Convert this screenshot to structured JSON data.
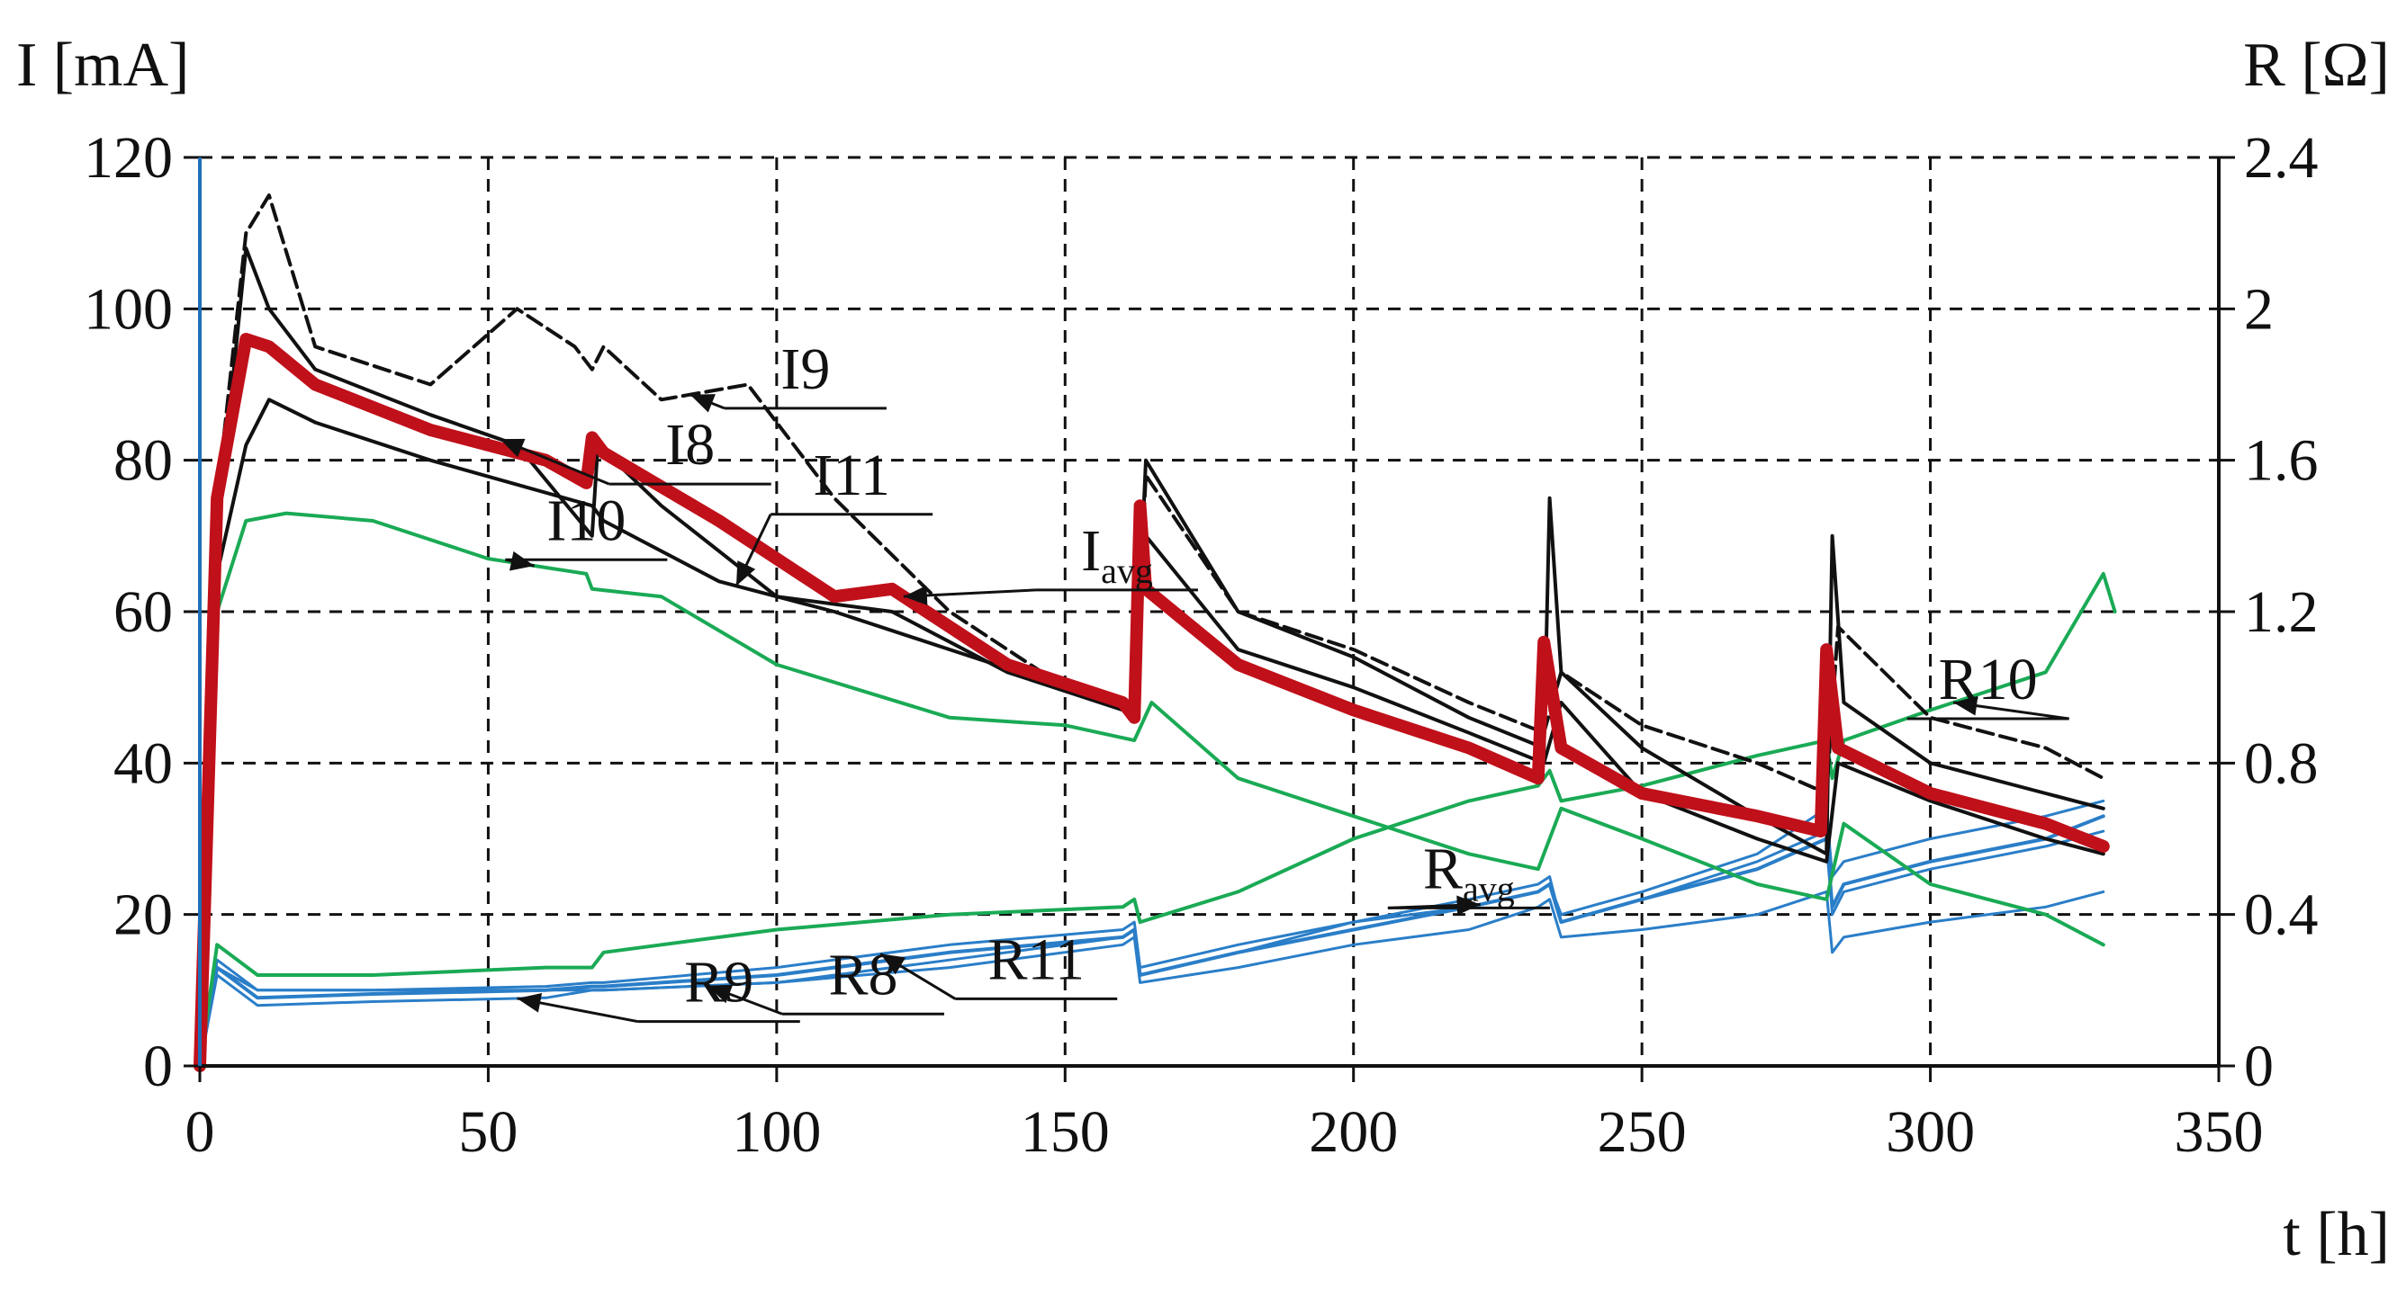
{
  "chart_data": {
    "type": "line",
    "x_axis": {
      "label": "t [h]",
      "min": 0,
      "max": 350,
      "ticks": [
        0,
        50,
        100,
        150,
        200,
        250,
        300,
        350
      ]
    },
    "y_left": {
      "label": "I [mA]",
      "min": 0,
      "max": 120,
      "ticks": [
        0,
        20,
        40,
        60,
        80,
        100,
        120
      ]
    },
    "y_right": {
      "label": "R [Ω]",
      "min": 0,
      "max": 2.4,
      "ticks": [
        "0",
        "0.4",
        "0.8",
        "1.2",
        "1.6",
        "2",
        "2.4"
      ]
    },
    "grid": "dashed",
    "colors": {
      "I8": "#111111",
      "I9": "#111111",
      "I11": "#111111",
      "I10": "#1aaa55",
      "Iavg": "#c0101a",
      "R8": "#2a7ec8",
      "R9": "#2a7ec8",
      "R11": "#2a7ec8",
      "R10": "#1aaa55",
      "Ravg": "#2a7ec8"
    },
    "series": [
      {
        "name": "I8",
        "axis": "left",
        "x": [
          0,
          3,
          8,
          12,
          20,
          40,
          55,
          68,
          69,
          80,
          100,
          120,
          140,
          160,
          162,
          164,
          180,
          200,
          220,
          233,
          234,
          236,
          250,
          270,
          282,
          283,
          285,
          300,
          320,
          330
        ],
        "y": [
          0,
          70,
          108,
          100,
          92,
          86,
          82,
          70,
          82,
          74,
          62,
          60,
          52,
          47,
          46,
          80,
          60,
          54,
          46,
          42,
          75,
          52,
          42,
          33,
          28,
          70,
          48,
          40,
          36,
          34
        ]
      },
      {
        "name": "I9",
        "axis": "left",
        "x": [
          0,
          3,
          8,
          12,
          20,
          40,
          55,
          65,
          68,
          70,
          80,
          95,
          110,
          130,
          150,
          162,
          164,
          180,
          200,
          220,
          233,
          236,
          250,
          270,
          282,
          284,
          300,
          320,
          330
        ],
        "y": [
          0,
          75,
          110,
          115,
          95,
          90,
          100,
          95,
          92,
          95,
          88,
          90,
          75,
          60,
          50,
          47,
          78,
          60,
          55,
          48,
          44,
          52,
          45,
          40,
          36,
          58,
          46,
          42,
          38
        ]
      },
      {
        "name": "I11",
        "axis": "left",
        "x": [
          0,
          3,
          8,
          12,
          20,
          40,
          68,
          70,
          90,
          110,
          130,
          150,
          162,
          164,
          180,
          200,
          220,
          233,
          236,
          250,
          270,
          282,
          284,
          300,
          320,
          330
        ],
        "y": [
          0,
          65,
          82,
          88,
          85,
          80,
          74,
          72,
          64,
          60,
          55,
          50,
          47,
          70,
          55,
          50,
          44,
          40,
          48,
          36,
          30,
          27,
          40,
          35,
          30,
          28
        ]
      },
      {
        "name": "I10",
        "axis": "left",
        "x": [
          0,
          3,
          8,
          15,
          30,
          50,
          67,
          68,
          80,
          100,
          130,
          150,
          162,
          165,
          180,
          200,
          220,
          232,
          236,
          250,
          270,
          282,
          285,
          300,
          320,
          330
        ],
        "y": [
          0,
          60,
          72,
          73,
          72,
          67,
          65,
          63,
          62,
          53,
          46,
          45,
          43,
          48,
          38,
          33,
          28,
          26,
          34,
          30,
          24,
          22,
          32,
          24,
          20,
          16
        ]
      },
      {
        "name": "Iavg",
        "axis": "left",
        "x": [
          0,
          3,
          8,
          12,
          20,
          40,
          60,
          67,
          68,
          70,
          90,
          110,
          120,
          140,
          160,
          162,
          163,
          164,
          180,
          200,
          220,
          232,
          233,
          236,
          250,
          270,
          281,
          282,
          284,
          300,
          320,
          330
        ],
        "y": [
          0,
          75,
          96,
          95,
          90,
          84,
          80,
          77,
          83,
          81,
          72,
          62,
          63,
          53,
          48,
          46,
          74,
          63,
          53,
          47,
          42,
          38,
          56,
          42,
          36,
          33,
          31,
          55,
          42,
          36,
          32,
          29
        ]
      },
      {
        "name": "R8",
        "axis": "right",
        "x": [
          0,
          3,
          10,
          30,
          60,
          68,
          70,
          100,
          130,
          160,
          162,
          163,
          180,
          200,
          220,
          232,
          234,
          236,
          250,
          270,
          282,
          283,
          285,
          300,
          320,
          330
        ],
        "y": [
          0,
          0.26,
          0.2,
          0.2,
          0.2,
          0.2,
          0.2,
          0.22,
          0.26,
          0.32,
          0.34,
          0.22,
          0.26,
          0.32,
          0.36,
          0.42,
          0.44,
          0.34,
          0.36,
          0.4,
          0.46,
          0.3,
          0.34,
          0.38,
          0.42,
          0.46
        ]
      },
      {
        "name": "R9",
        "axis": "right",
        "x": [
          0,
          3,
          10,
          30,
          60,
          68,
          70,
          100,
          130,
          160,
          162,
          163,
          180,
          200,
          220,
          232,
          234,
          236,
          250,
          270,
          282,
          283,
          285,
          300,
          320,
          330
        ],
        "y": [
          0,
          0.24,
          0.16,
          0.17,
          0.18,
          0.2,
          0.2,
          0.22,
          0.28,
          0.34,
          0.36,
          0.24,
          0.3,
          0.38,
          0.42,
          0.46,
          0.48,
          0.4,
          0.46,
          0.56,
          0.68,
          0.5,
          0.54,
          0.6,
          0.66,
          0.7
        ]
      },
      {
        "name": "R11",
        "axis": "right",
        "x": [
          0,
          3,
          10,
          30,
          60,
          68,
          70,
          100,
          130,
          160,
          162,
          163,
          180,
          200,
          220,
          232,
          234,
          236,
          250,
          270,
          282,
          283,
          285,
          300,
          320,
          330
        ],
        "y": [
          0,
          0.28,
          0.2,
          0.2,
          0.21,
          0.22,
          0.22,
          0.26,
          0.32,
          0.36,
          0.38,
          0.26,
          0.32,
          0.38,
          0.44,
          0.48,
          0.5,
          0.38,
          0.44,
          0.54,
          0.62,
          0.4,
          0.46,
          0.52,
          0.58,
          0.62
        ]
      },
      {
        "name": "R10",
        "axis": "right",
        "x": [
          0,
          3,
          10,
          30,
          60,
          68,
          70,
          100,
          130,
          160,
          162,
          163,
          180,
          200,
          220,
          232,
          234,
          236,
          250,
          270,
          282,
          283,
          285,
          300,
          320,
          330,
          332
        ],
        "y": [
          0,
          0.32,
          0.24,
          0.24,
          0.26,
          0.26,
          0.3,
          0.36,
          0.4,
          0.42,
          0.44,
          0.38,
          0.46,
          0.6,
          0.7,
          0.74,
          0.78,
          0.7,
          0.74,
          0.82,
          0.86,
          0.76,
          0.86,
          0.94,
          1.04,
          1.3,
          1.2
        ]
      },
      {
        "name": "Ravg",
        "axis": "right",
        "x": [
          0,
          3,
          10,
          30,
          60,
          68,
          70,
          100,
          130,
          160,
          162,
          163,
          180,
          200,
          220,
          232,
          234,
          236,
          250,
          270,
          282,
          283,
          285,
          300,
          320,
          330
        ],
        "y": [
          0,
          0.26,
          0.18,
          0.19,
          0.2,
          0.21,
          0.21,
          0.24,
          0.3,
          0.34,
          0.36,
          0.24,
          0.3,
          0.36,
          0.42,
          0.46,
          0.48,
          0.38,
          0.44,
          0.52,
          0.6,
          0.42,
          0.48,
          0.54,
          0.6,
          0.66
        ]
      }
    ],
    "annotations": [
      {
        "text": "I8",
        "at": [
          85,
          79
        ]
      },
      {
        "text": "I9",
        "at": [
          105,
          89
        ]
      },
      {
        "text": "I11",
        "at": [
          113,
          75
        ]
      },
      {
        "text": "Iavg",
        "at": [
          159,
          65
        ]
      },
      {
        "text": "I10",
        "at": [
          67,
          69
        ]
      },
      {
        "text": "R10",
        "at": [
          310,
          48
        ]
      },
      {
        "text": "R9",
        "at": [
          90,
          8
        ]
      },
      {
        "text": "R8",
        "at": [
          115,
          9
        ]
      },
      {
        "text": "R11",
        "at": [
          145,
          11
        ]
      },
      {
        "text": "Ravg",
        "at": [
          220,
          23
        ]
      }
    ]
  }
}
